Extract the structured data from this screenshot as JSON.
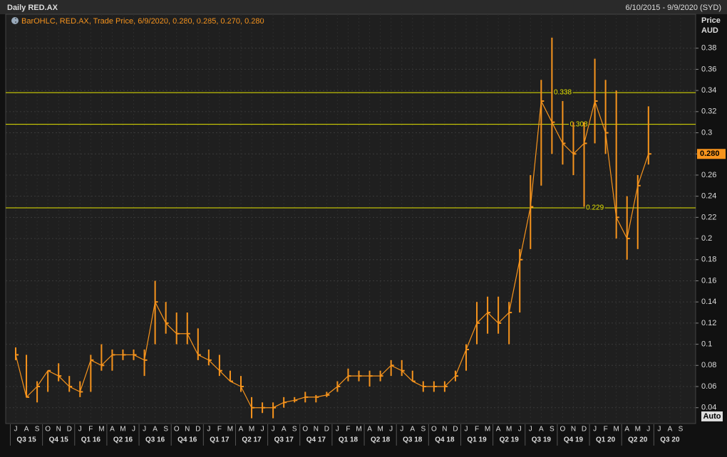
{
  "header": {
    "title": "Daily RED.AX",
    "range": "6/10/2015 - 9/9/2020 (SYD)",
    "legend": "BarOHLC, RED.AX, Trade Price, 6/9/2020, 0.280, 0.285, 0.270, 0.280",
    "axis_title": "Price",
    "axis_unit": "AUD",
    "auto_button": "Auto"
  },
  "chart_data": {
    "type": "ohlc",
    "color": "#f7941d",
    "grid": true,
    "categories": [
      "J",
      "A",
      "S",
      "O",
      "N",
      "D",
      "J",
      "F",
      "M",
      "A",
      "M",
      "J",
      "J",
      "A",
      "S",
      "O",
      "N",
      "D",
      "J",
      "F",
      "M",
      "A",
      "M",
      "J",
      "J",
      "A",
      "S",
      "O",
      "N",
      "D",
      "J",
      "F",
      "M",
      "A",
      "M",
      "J",
      "J",
      "A",
      "S",
      "O",
      "N",
      "D",
      "J",
      "F",
      "M",
      "A",
      "M",
      "J",
      "J",
      "A",
      "S",
      "O",
      "N",
      "D",
      "J",
      "F",
      "M",
      "A",
      "M",
      "J",
      "J",
      "A",
      "S"
    ],
    "quarters": [
      "Q3 15",
      "Q4 15",
      "Q1 16",
      "Q2 16",
      "Q3 16",
      "Q4 16",
      "Q1 17",
      "Q2 17",
      "Q3 17",
      "Q4 17",
      "Q1 18",
      "Q2 18",
      "Q3 18",
      "Q4 18",
      "Q1 19",
      "Q2 19",
      "Q3 19",
      "Q4 19",
      "Q1 20",
      "Q2 20",
      "Q3 20"
    ],
    "series": [
      {
        "name": "High",
        "values": [
          0.097,
          0.09,
          0.065,
          0.075,
          0.082,
          0.07,
          0.065,
          0.09,
          0.1,
          0.095,
          0.095,
          0.095,
          0.095,
          0.16,
          0.14,
          0.13,
          0.13,
          0.115,
          0.095,
          0.09,
          0.075,
          0.07,
          0.05,
          0.045,
          0.045,
          0.05,
          0.05,
          0.055,
          0.052,
          0.055,
          0.065,
          0.077,
          0.075,
          0.075,
          0.075,
          0.085,
          0.085,
          0.075,
          0.065,
          0.065,
          0.065,
          0.075,
          0.1,
          0.14,
          0.145,
          0.145,
          0.14,
          0.19,
          0.26,
          0.35,
          0.39,
          0.33,
          0.31,
          0.31,
          0.37,
          0.35,
          0.34,
          0.24,
          0.26,
          0.325,
          null,
          null,
          null
        ]
      },
      {
        "name": "Low",
        "values": [
          0.085,
          0.05,
          0.045,
          0.055,
          0.065,
          0.055,
          0.05,
          0.055,
          0.075,
          0.075,
          0.085,
          0.085,
          0.07,
          0.1,
          0.11,
          0.1,
          0.1,
          0.085,
          0.08,
          0.07,
          0.065,
          0.055,
          0.03,
          0.035,
          0.03,
          0.04,
          0.045,
          0.045,
          0.045,
          0.05,
          0.055,
          0.065,
          0.065,
          0.06,
          0.065,
          0.07,
          0.07,
          0.065,
          0.055,
          0.055,
          0.055,
          0.065,
          0.075,
          0.1,
          0.11,
          0.11,
          0.1,
          0.13,
          0.19,
          0.25,
          0.28,
          0.27,
          0.26,
          0.23,
          0.29,
          0.28,
          0.2,
          0.18,
          0.19,
          0.27,
          null,
          null,
          null
        ]
      },
      {
        "name": "Close",
        "values": [
          0.09,
          0.05,
          0.06,
          0.075,
          0.07,
          0.06,
          0.055,
          0.085,
          0.08,
          0.09,
          0.09,
          0.09,
          0.085,
          0.14,
          0.12,
          0.11,
          0.11,
          0.09,
          0.085,
          0.075,
          0.065,
          0.06,
          0.04,
          0.04,
          0.04,
          0.045,
          0.047,
          0.05,
          0.05,
          0.052,
          0.06,
          0.07,
          0.07,
          0.07,
          0.07,
          0.08,
          0.075,
          0.065,
          0.06,
          0.06,
          0.06,
          0.07,
          0.095,
          0.12,
          0.13,
          0.12,
          0.13,
          0.18,
          0.23,
          0.33,
          0.31,
          0.29,
          0.28,
          0.29,
          0.33,
          0.3,
          0.22,
          0.2,
          0.25,
          0.28,
          null,
          null,
          null
        ]
      }
    ],
    "levels": [
      0.338,
      0.308,
      0.229
    ],
    "level_color": "#e6e600",
    "last_price": {
      "value": 0.28,
      "label": "0.280"
    },
    "ylim": [
      0.025,
      0.4
    ],
    "yticks": [
      0.04,
      0.06,
      0.08,
      0.1,
      0.12,
      0.14,
      0.16,
      0.18,
      0.2,
      0.22,
      0.24,
      0.26,
      0.28,
      0.3,
      0.32,
      0.34,
      0.36,
      0.38
    ]
  }
}
